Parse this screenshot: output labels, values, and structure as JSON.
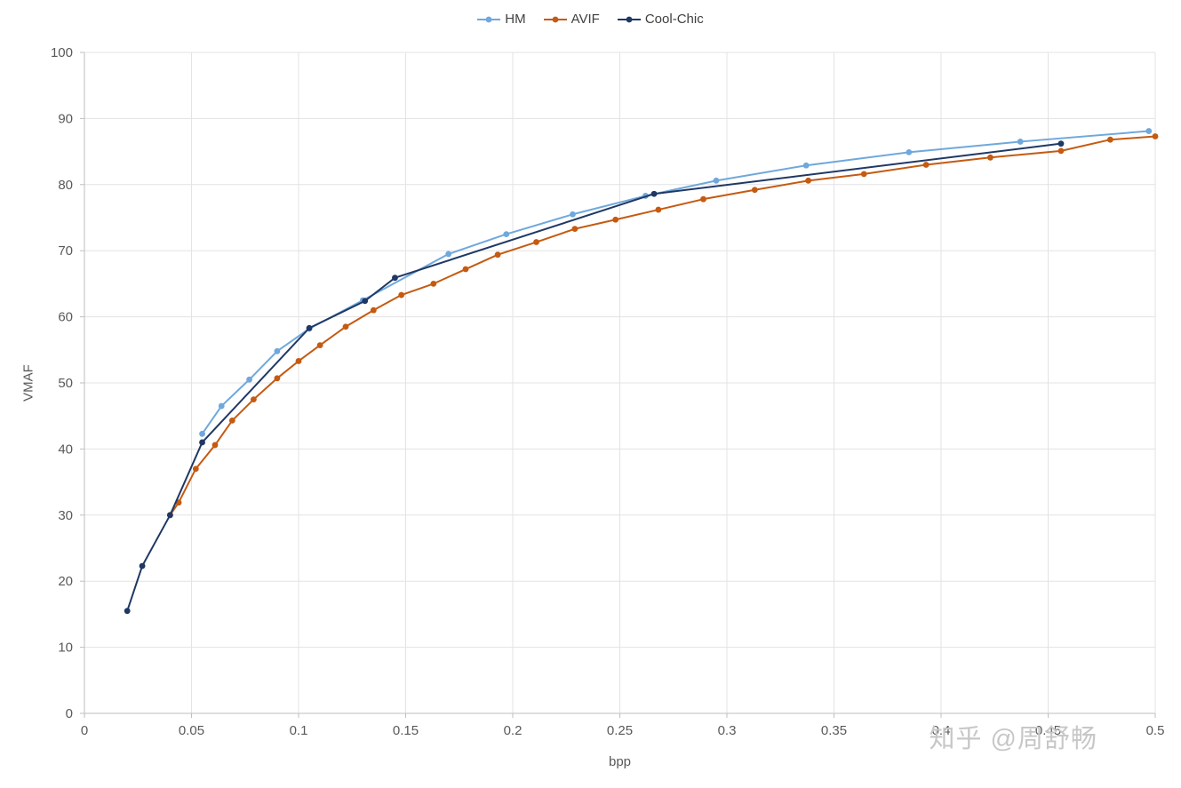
{
  "watermark": "知乎 @周舒畅",
  "chart_data": {
    "type": "line",
    "title": "",
    "xlabel": "bpp",
    "ylabel": "VMAF",
    "xlim": [
      0,
      0.5
    ],
    "ylim": [
      0,
      100
    ],
    "x_ticks": [
      0,
      0.05,
      0.1,
      0.15,
      0.2,
      0.25,
      0.3,
      0.35,
      0.4,
      0.45,
      0.5
    ],
    "y_ticks": [
      0,
      10,
      20,
      30,
      40,
      50,
      60,
      70,
      80,
      90,
      100
    ],
    "grid": true,
    "legend_position": "top-center",
    "marker": "circle",
    "colors": {
      "grid": "#e3e3e3",
      "axis": "#bfbfbf",
      "tick_label": "#595959"
    },
    "series": [
      {
        "name": "HM",
        "color": "#6FA8DC",
        "points": [
          [
            0.055,
            42.3
          ],
          [
            0.064,
            46.5
          ],
          [
            0.077,
            50.5
          ],
          [
            0.09,
            54.8
          ],
          [
            0.105,
            58.2
          ],
          [
            0.13,
            62.5
          ],
          [
            0.17,
            69.5
          ],
          [
            0.197,
            72.5
          ],
          [
            0.228,
            75.5
          ],
          [
            0.262,
            78.3
          ],
          [
            0.295,
            80.6
          ],
          [
            0.337,
            82.9
          ],
          [
            0.385,
            84.9
          ],
          [
            0.437,
            86.5
          ],
          [
            0.497,
            88.1
          ]
        ]
      },
      {
        "name": "AVIF",
        "color": "#C55A11",
        "points": [
          [
            0.04,
            30.0
          ],
          [
            0.044,
            31.9
          ],
          [
            0.052,
            37.0
          ],
          [
            0.061,
            40.6
          ],
          [
            0.069,
            44.3
          ],
          [
            0.079,
            47.5
          ],
          [
            0.09,
            50.7
          ],
          [
            0.1,
            53.3
          ],
          [
            0.11,
            55.7
          ],
          [
            0.122,
            58.5
          ],
          [
            0.135,
            61.0
          ],
          [
            0.148,
            63.3
          ],
          [
            0.163,
            65.0
          ],
          [
            0.178,
            67.2
          ],
          [
            0.193,
            69.4
          ],
          [
            0.211,
            71.3
          ],
          [
            0.229,
            73.3
          ],
          [
            0.248,
            74.7
          ],
          [
            0.268,
            76.2
          ],
          [
            0.289,
            77.8
          ],
          [
            0.313,
            79.2
          ],
          [
            0.338,
            80.6
          ],
          [
            0.364,
            81.6
          ],
          [
            0.393,
            83.0
          ],
          [
            0.423,
            84.1
          ],
          [
            0.456,
            85.1
          ],
          [
            0.479,
            86.8
          ],
          [
            0.5,
            87.3
          ]
        ]
      },
      {
        "name": "Cool-Chic",
        "color": "#1F3864",
        "points": [
          [
            0.02,
            15.5
          ],
          [
            0.027,
            22.3
          ],
          [
            0.04,
            30.0
          ],
          [
            0.055,
            41.0
          ],
          [
            0.105,
            58.3
          ],
          [
            0.131,
            62.4
          ],
          [
            0.145,
            65.9
          ],
          [
            0.266,
            78.6
          ],
          [
            0.456,
            86.2
          ]
        ]
      }
    ]
  }
}
